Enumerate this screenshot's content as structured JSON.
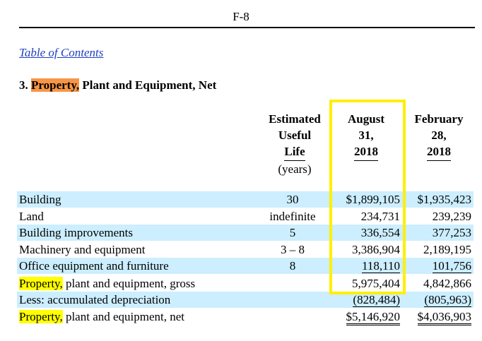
{
  "page": {
    "number": "F-8"
  },
  "toc_link": "Table of Contents",
  "heading": {
    "number": "3.",
    "highlight": "Property,",
    "rest": "Plant and Equipment, Net"
  },
  "columns": {
    "estimated": [
      "Estimated",
      "Useful",
      "Life"
    ],
    "estimated_unit": "(years)",
    "august": [
      "August",
      "31,",
      "2018"
    ],
    "february": [
      "February",
      "28,",
      "2018"
    ]
  },
  "rows": [
    {
      "label": "Building",
      "life": "30",
      "aug": "$1,899,105",
      "feb": "$1,935,423"
    },
    {
      "label": "Land",
      "life": "indefinite",
      "aug": "234,731",
      "feb": "239,239"
    },
    {
      "label": "Building improvements",
      "life": "5",
      "aug": "336,554",
      "feb": "377,253"
    },
    {
      "label": "Machinery and equipment",
      "life": "3 – 8",
      "aug": "3,386,904",
      "feb": "2,189,195"
    },
    {
      "label": "Office equipment and furniture",
      "life": "8",
      "aug": "118,110",
      "feb": "101,756"
    },
    {
      "label_highlight": "Property,",
      "label_rest": " plant and equipment, gross",
      "life": "",
      "aug": "5,975,404",
      "feb": "4,842,866"
    },
    {
      "label": "Less: accumulated depreciation",
      "life": "",
      "aug": "(828,484)",
      "feb": "(805,963)"
    },
    {
      "label_highlight": "Property,",
      "label_rest": " plant and equipment, net",
      "life": "",
      "aug": "$5,146,920",
      "feb": "$4,036,903"
    }
  ],
  "colors": {
    "highlight_orange": "#f79646",
    "highlight_yellow": "#ffff00",
    "row_shade": "#cceeff",
    "box": "#ffef00",
    "link": "#1f3fbf"
  }
}
